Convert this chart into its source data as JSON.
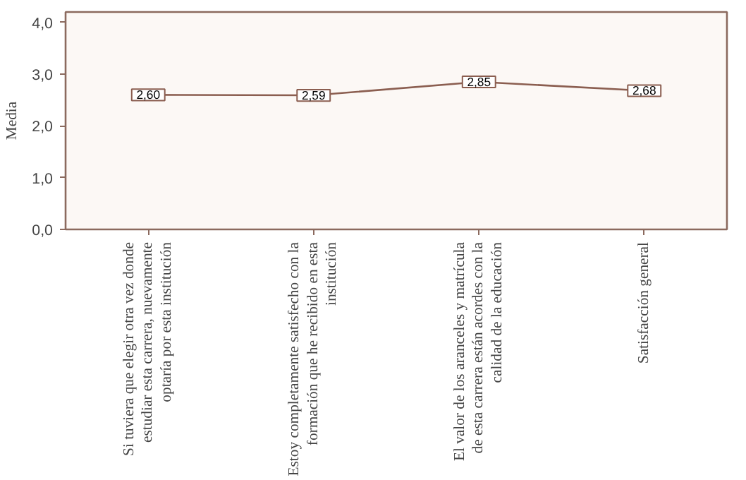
{
  "chart_data": {
    "type": "line",
    "ylabel": "Media",
    "categories": [
      "Si tuviera que elegir otra vez donde estudiar esta carrera, nuevamente optaría por esta institución",
      "Estoy completamente satisfecho con la formación que he recibido en esta institución",
      "El valor de los aranceles y matrícula de esta carrera están acordes con la calidad de la educación",
      "Satisfacción general"
    ],
    "values": [
      2.6,
      2.59,
      2.85,
      2.68
    ],
    "value_labels": [
      "2,60",
      "2,59",
      "2,85",
      "2,68"
    ],
    "color": "#8b5e50",
    "ylim": [
      0,
      4.2
    ],
    "yticks": [
      {
        "value": 0,
        "label": "0,0"
      },
      {
        "value": 1,
        "label": "1,0"
      },
      {
        "value": 2,
        "label": "2,0"
      },
      {
        "value": 3,
        "label": "3,0"
      },
      {
        "value": 4,
        "label": "4,0"
      }
    ],
    "grid": false,
    "marker": "square",
    "line_style": "solid"
  }
}
